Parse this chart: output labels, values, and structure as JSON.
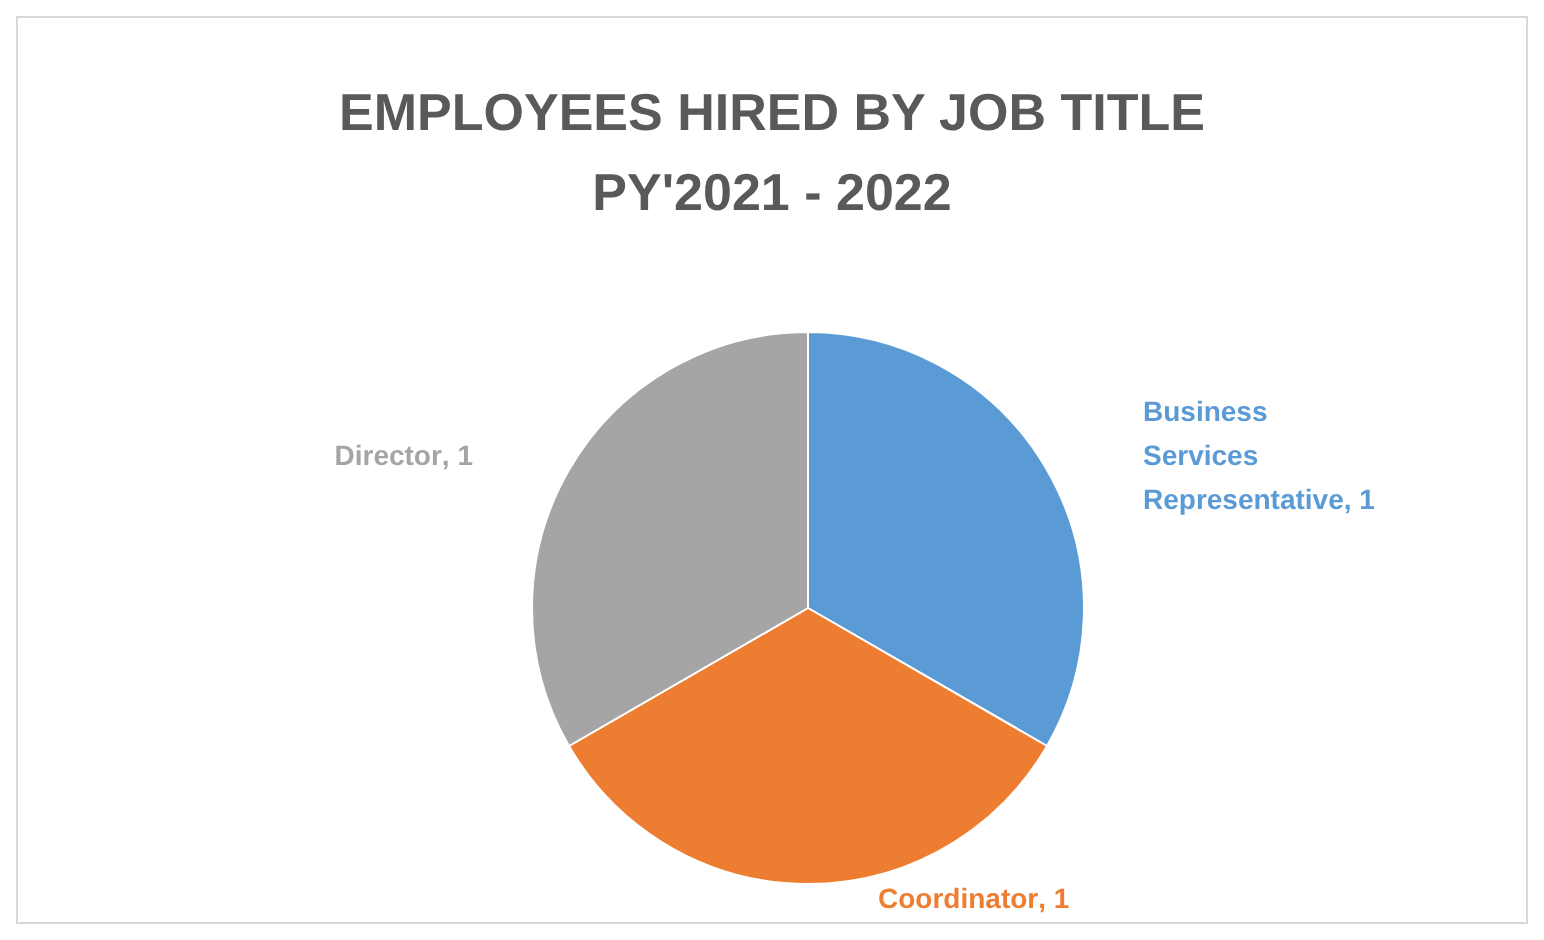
{
  "chart_data": {
    "type": "pie",
    "title": "EMPLOYEES HIRED BY JOB TITLE\nPY'2021 - 2022",
    "categories": [
      "Business Services Representative",
      "Coordinator",
      "Director"
    ],
    "values": [
      1,
      1,
      1
    ],
    "colors": [
      "#5b9bd5",
      "#ed7d31",
      "#a5a5a5"
    ],
    "value_labels": [
      ", 1",
      ", 1",
      ", 1"
    ],
    "legend": false
  }
}
